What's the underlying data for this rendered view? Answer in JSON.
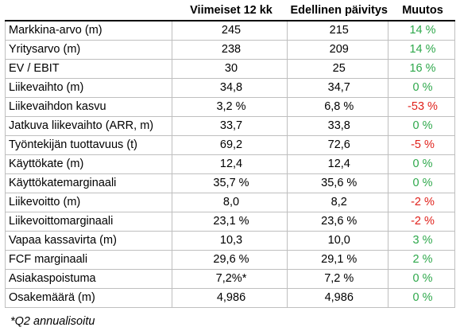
{
  "header": [
    "",
    "Viimeiset 12 kk",
    "Edellinen päivitys",
    "Muutos"
  ],
  "rows": [
    {
      "label": "Markkina-arvo (m)",
      "last12": "245",
      "prev": "215",
      "change": "14 %",
      "tone": "pos"
    },
    {
      "label": "Yritysarvo (m)",
      "last12": "238",
      "prev": "209",
      "change": "14 %",
      "tone": "pos"
    },
    {
      "label": "EV / EBIT",
      "last12": "30",
      "prev": "25",
      "change": "16 %",
      "tone": "pos"
    },
    {
      "label": "Liikevaihto (m)",
      "last12": "34,8",
      "prev": "34,7",
      "change": "0 %",
      "tone": "neu"
    },
    {
      "label": "Liikevaihdon kasvu",
      "last12": "3,2 %",
      "prev": "6,8 %",
      "change": "-53 %",
      "tone": "neg"
    },
    {
      "label": "Jatkuva liikevaihto (ARR, m)",
      "last12": "33,7",
      "prev": "33,8",
      "change": "0 %",
      "tone": "neu"
    },
    {
      "label": "Työntekijän tuottavuus (t)",
      "last12": "69,2",
      "prev": "72,6",
      "change": "-5 %",
      "tone": "neg"
    },
    {
      "label": "Käyttökate (m)",
      "last12": "12,4",
      "prev": "12,4",
      "change": "0 %",
      "tone": "neu"
    },
    {
      "label": "Käyttökatemarginaali",
      "last12": "35,7 %",
      "prev": "35,6 %",
      "change": "0 %",
      "tone": "neu"
    },
    {
      "label": "Liikevoitto (m)",
      "last12": "8,0",
      "prev": "8,2",
      "change": "-2 %",
      "tone": "neg"
    },
    {
      "label": "Liikevoittomarginaali",
      "last12": "23,1 %",
      "prev": "23,6 %",
      "change": "-2 %",
      "tone": "neg"
    },
    {
      "label": "Vapaa kassavirta (m)",
      "last12": "10,3",
      "prev": "10,0",
      "change": "3 %",
      "tone": "pos"
    },
    {
      "label": "FCF marginaali",
      "last12": "29,6 %",
      "prev": "29,1 %",
      "change": "2 %",
      "tone": "pos"
    },
    {
      "label": "Asiakaspoistuma",
      "last12": "7,2%*",
      "prev": "7,2 %",
      "change": "0 %",
      "tone": "neu"
    },
    {
      "label": "Osakemäärä (m)",
      "last12": "4,986",
      "prev": "4,986",
      "change": "0 %",
      "tone": "neu"
    }
  ],
  "footnote": "*Q2 annualisoitu",
  "colors": {
    "positive": "#2ea84b",
    "negative": "#e0211b",
    "grid": "#bfbfbf"
  }
}
